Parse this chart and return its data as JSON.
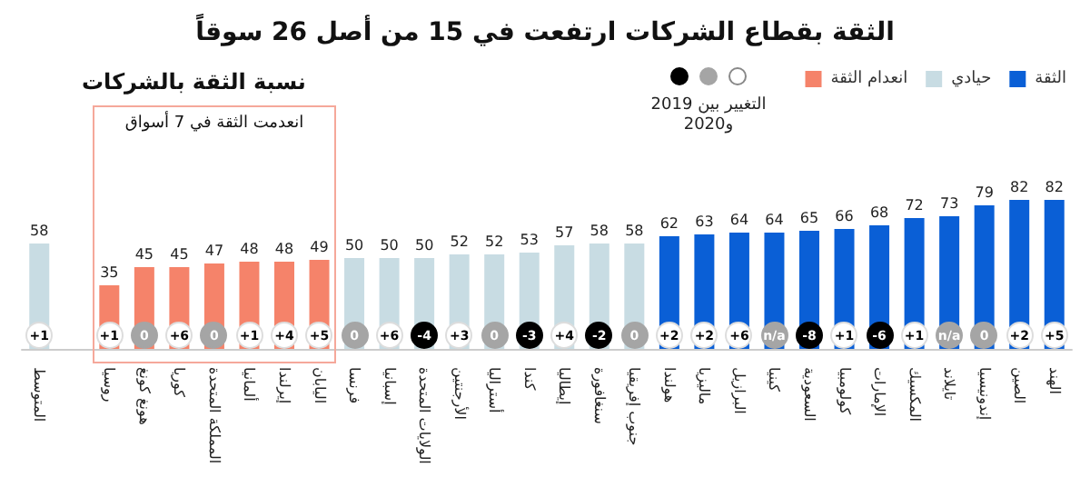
{
  "chart_data": {
    "type": "bar",
    "title": "الثقة بقطاع الشركات ارتفعت في 15 من أصل 26 سوقاً",
    "subtitle": "نسبة الثقة بالشركات",
    "categories": [
      "المتوسط",
      null,
      "روسيا",
      "هونغ كونغ",
      "كوريا",
      "المملكة المتحدة",
      "ألمانيا",
      "إيرلندا",
      "اليابان",
      "فرنسا",
      "إسبانيا",
      "الولايات المتحدة",
      "الأرجنتين",
      "أستراليا",
      "كندا",
      "إيطاليا",
      "سنغافورة",
      "جنوب إفريقيا",
      "هولندا",
      "ماليزيا",
      "البرازيل",
      "كينيا",
      "السعودية",
      "كولومبيا",
      "الإمارات",
      "المكسيك",
      "تايلاند",
      "إندونيسيا",
      "الصين",
      "الهند"
    ],
    "stacked": true,
    "data_labels": true,
    "legend": "top right",
    "series": [
      {
        "name": "الثقة",
        "color": "#0a5fd6",
        "values": [
          null,
          null,
          null,
          null,
          null,
          null,
          null,
          null,
          null,
          null,
          null,
          null,
          null,
          null,
          null,
          null,
          null,
          null,
          62,
          63,
          64,
          64,
          65,
          66,
          68,
          72,
          73,
          79,
          82,
          82
        ]
      },
      {
        "name": "حيادي",
        "color": "#c8dce3",
        "values": [
          58,
          null,
          null,
          null,
          null,
          null,
          null,
          null,
          null,
          50,
          50,
          50,
          52,
          52,
          53,
          57,
          58,
          58,
          null,
          null,
          null,
          null,
          null,
          null,
          null,
          null,
          null,
          null,
          null,
          null
        ]
      },
      {
        "name": "انعدام الثقة",
        "color": "#f5836a",
        "values": [
          null,
          null,
          35,
          45,
          45,
          47,
          48,
          48,
          49,
          null,
          null,
          null,
          null,
          null,
          null,
          null,
          null,
          null,
          null,
          null,
          null,
          null,
          null,
          null,
          null,
          null,
          null,
          null,
          null,
          null
        ]
      }
    ],
    "annotations": [
      "انعدمت الثقة في 7 أسواق",
      "التغيير بين 2019 و2020",
      {
        "text": "+1",
        "x": "المتوسط"
      },
      {
        "text": "+1",
        "x": "روسيا"
      },
      {
        "text": "0",
        "x": "هونغ كونغ"
      },
      {
        "text": "+6",
        "x": "كوريا"
      },
      {
        "text": "0",
        "x": "المملكة المتحدة"
      },
      {
        "text": "+1",
        "x": "ألمانيا"
      },
      {
        "text": "+4",
        "x": "إيرلندا"
      },
      {
        "text": "+5",
        "x": "اليابان"
      },
      {
        "text": "0",
        "x": "فرنسا"
      },
      {
        "text": "+6",
        "x": "إسبانيا"
      },
      {
        "text": "-4",
        "x": "الولايات المتحدة"
      },
      {
        "text": "+3",
        "x": "الأرجنتين"
      },
      {
        "text": "0",
        "x": "أستراليا"
      },
      {
        "text": "-3",
        "x": "كندا"
      },
      {
        "text": "+4",
        "x": "إيطاليا"
      },
      {
        "text": "-2",
        "x": "سنغافورة"
      },
      {
        "text": "0",
        "x": "جنوب إفريقيا"
      },
      {
        "text": "+2",
        "x": "هولندا"
      },
      {
        "text": "+2",
        "x": "ماليزيا"
      },
      {
        "text": "+6",
        "x": "البرازيل"
      },
      {
        "text": "n/a",
        "x": "كينيا"
      },
      {
        "text": "-8",
        "x": "السعودية"
      },
      {
        "text": "+1",
        "x": "كولومبيا"
      },
      {
        "text": "-6",
        "x": "الإمارات"
      },
      {
        "text": "+1",
        "x": "المكسيك"
      },
      {
        "text": "n/a",
        "x": "تايلاند"
      },
      {
        "text": "0",
        "x": "إندونيسيا"
      },
      {
        "text": "+2",
        "x": "الصين"
      },
      {
        "text": "+5",
        "x": "الهند"
      }
    ]
  }
}
